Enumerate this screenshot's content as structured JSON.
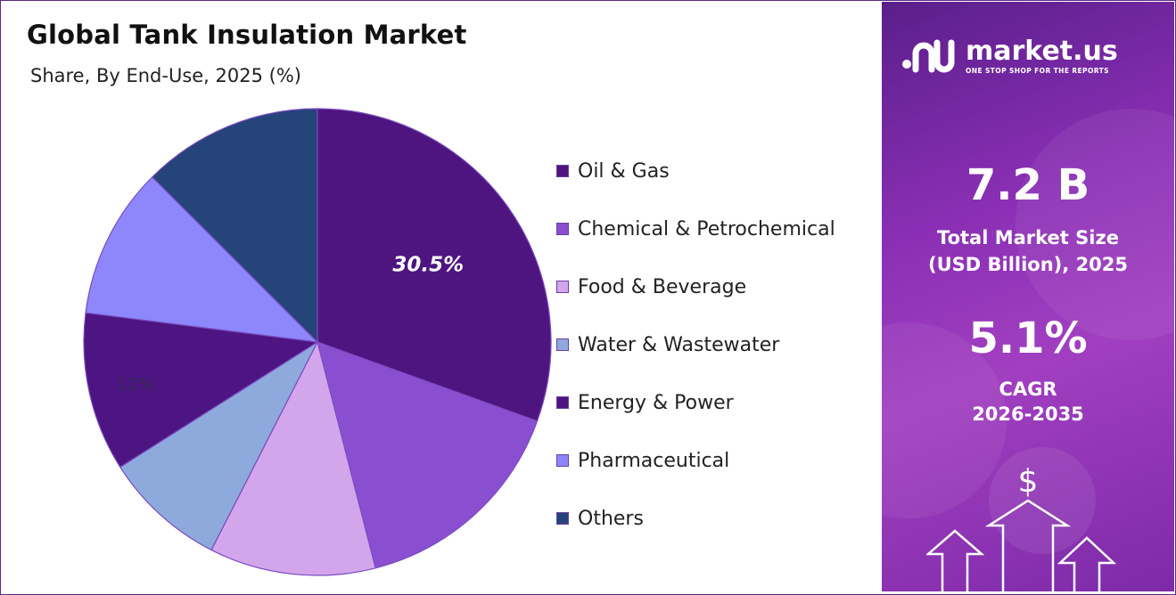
{
  "chart_data": {
    "type": "pie",
    "title": "Global Tank Insulation Market",
    "subtitle": "Share, By End-Use, 2025 (%)",
    "categories": [
      "Oil & Gas",
      "Chemical & Petrochemical",
      "Food & Beverage",
      "Water & Wastewater",
      "Energy & Power",
      "Pharmaceutical",
      "Others"
    ],
    "values": [
      30.5,
      15.5,
      11.5,
      8.5,
      11.0,
      10.5,
      12.5
    ],
    "colors": [
      "#4e1580",
      "#8a4fd1",
      "#d3a6ec",
      "#8ea9dc",
      "#4c1582",
      "#8d87fb",
      "#25447a"
    ],
    "data_labels": [
      {
        "category": "Oil & Gas",
        "text": "30.5%"
      },
      {
        "category": "Energy & Power",
        "text": "11%"
      }
    ],
    "legend_position": "right",
    "start_angle_deg": 0,
    "direction": "clockwise"
  },
  "panel": {
    "brand_name": "market.us",
    "brand_tagline": "ONE STOP SHOP FOR THE REPORTS",
    "market_size_value": "7.2 B",
    "market_size_label_1": "Total Market Size",
    "market_size_label_2": "(USD Billion), 2025",
    "cagr_value": "5.1%",
    "cagr_label_1": "CAGR",
    "cagr_label_2": "2026-2035",
    "currency_symbol": "$",
    "icons": [
      "market-us-logo-icon",
      "dollar-icon",
      "up-arrow-icon"
    ]
  }
}
